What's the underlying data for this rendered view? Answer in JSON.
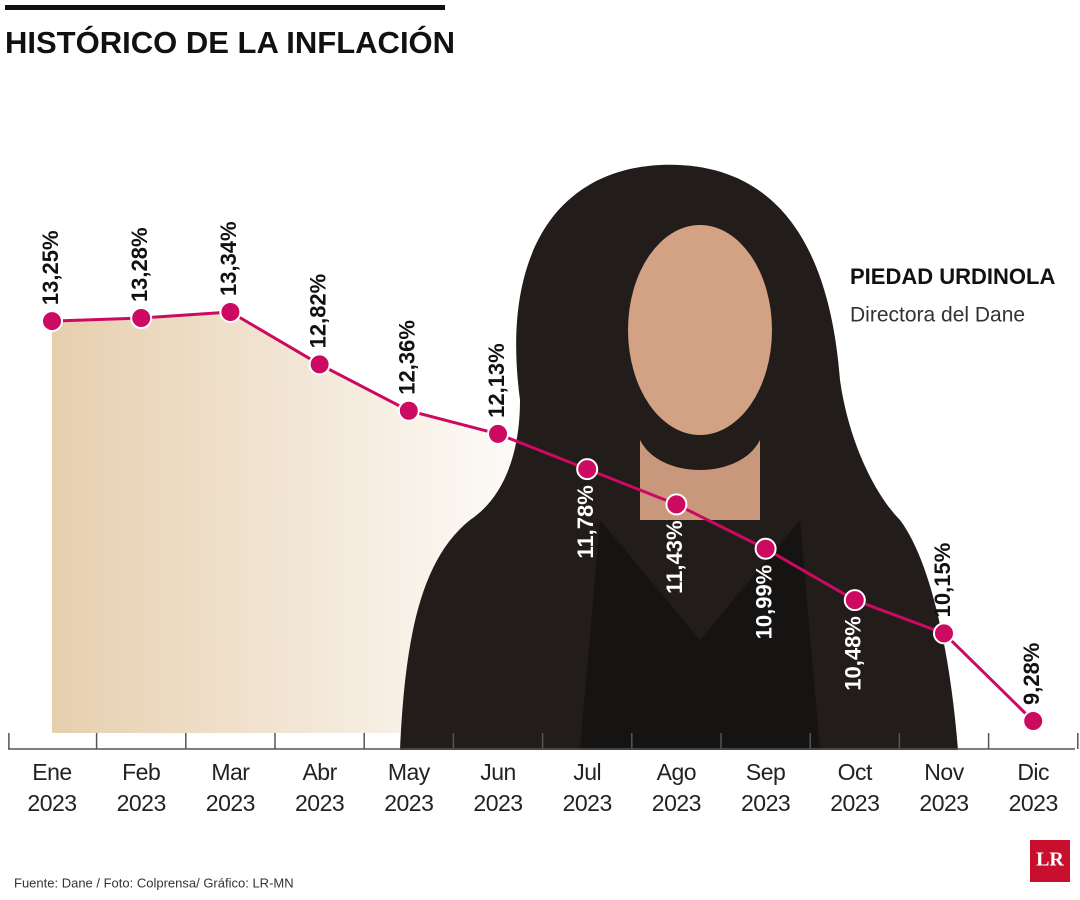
{
  "chart_data": {
    "type": "line",
    "title": "HISTÓRICO DE LA INFLACIÓN",
    "categories": [
      "Ene 2023",
      "Feb 2023",
      "Mar 2023",
      "Abr 2023",
      "May 2023",
      "Jun 2023",
      "Jul 2023",
      "Ago 2023",
      "Sep 2023",
      "Oct 2023",
      "Nov 2023",
      "Dic 2023"
    ],
    "values": [
      13.25,
      13.28,
      13.34,
      12.82,
      12.36,
      12.13,
      11.78,
      11.43,
      10.99,
      10.48,
      10.15,
      9.28
    ],
    "value_labels": [
      "13,25%",
      "13,28%",
      "13,34%",
      "12,82%",
      "12,36%",
      "12,13%",
      "11,78%",
      "11,43%",
      "10,99%",
      "10,48%",
      "10,15%",
      "9,28%"
    ],
    "color": "#cc0a62",
    "area_color": "#e6cfae",
    "annotation": {
      "name": "PIEDAD URDINOLA",
      "role": "Directora del Dane"
    },
    "source": "Fuente: Dane / Foto: Colprensa/ Gráfico: LR-MN",
    "logo": "LR"
  }
}
